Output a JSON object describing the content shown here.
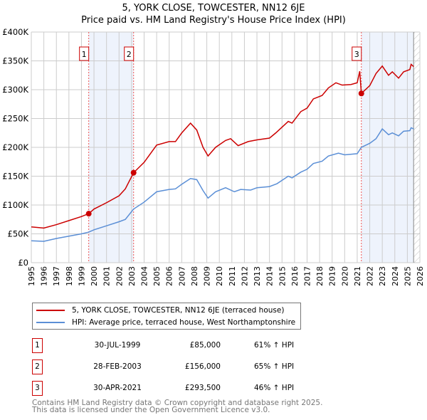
{
  "chart_data": {
    "type": "line",
    "title": "5, YORK CLOSE, TOWCESTER, NN12 6JE",
    "subtitle": "Price paid vs. HM Land Registry's House Price Index (HPI)",
    "xlim": [
      1995,
      2026
    ],
    "ylim": [
      0,
      400000
    ],
    "x_ticks": [
      "1995",
      "1996",
      "1997",
      "1998",
      "1999",
      "2000",
      "2001",
      "2002",
      "2003",
      "2004",
      "2005",
      "2006",
      "2007",
      "2008",
      "2009",
      "2010",
      "2011",
      "2012",
      "2013",
      "2014",
      "2015",
      "2016",
      "2017",
      "2018",
      "2019",
      "2020",
      "2021",
      "2022",
      "2023",
      "2024",
      "2025",
      "2026"
    ],
    "y_ticks": [
      {
        "v": 0,
        "l": "£0"
      },
      {
        "v": 50000,
        "l": "£50K"
      },
      {
        "v": 100000,
        "l": "£100K"
      },
      {
        "v": 150000,
        "l": "£150K"
      },
      {
        "v": 200000,
        "l": "£200K"
      },
      {
        "v": 250000,
        "l": "£250K"
      },
      {
        "v": 300000,
        "l": "£300K"
      },
      {
        "v": 350000,
        "l": "£350K"
      },
      {
        "v": 400000,
        "l": "£400K"
      }
    ],
    "grid": true,
    "shaded_ranges": [
      [
        1999.58,
        2003.16
      ],
      [
        2021.33,
        2026
      ]
    ],
    "hatched_from": 2025.5,
    "series": [
      {
        "name": "5, YORK CLOSE, TOWCESTER, NN12 6JE (terraced house)",
        "color": "#cc0000",
        "x": [
          1995,
          1996,
          1997,
          1998,
          1999,
          1999.58,
          2000,
          2001,
          2002,
          2002.5,
          2003.16,
          2004,
          2005,
          2006,
          2006.5,
          2007,
          2007.7,
          2008.2,
          2008.7,
          2009.1,
          2009.7,
          2010.5,
          2010.9,
          2011.5,
          2012.3,
          2013,
          2014,
          2014.5,
          2015.5,
          2015.8,
          2016.5,
          2017,
          2017.5,
          2018.2,
          2018.7,
          2019.3,
          2019.8,
          2020.5,
          2021,
          2021.2,
          2021.33,
          2022,
          2022.5,
          2023,
          2023.5,
          2023.8,
          2024.3,
          2024.7,
          2025.2,
          2025.3,
          2025.5
        ],
        "y": [
          62000,
          60000,
          66000,
          73000,
          80000,
          85000,
          93000,
          104000,
          116000,
          128000,
          156000,
          174000,
          204000,
          210000,
          210000,
          225000,
          242000,
          230000,
          200000,
          185000,
          200000,
          212000,
          215000,
          203000,
          210000,
          213000,
          216000,
          225000,
          245000,
          242000,
          262000,
          268000,
          284000,
          290000,
          303000,
          312000,
          308000,
          309000,
          312000,
          332000,
          293500,
          307000,
          328000,
          341000,
          325000,
          331000,
          320000,
          331000,
          335000,
          344000,
          340000
        ]
      },
      {
        "name": "HPI: Average price, terraced house, West Northamptonshire",
        "color": "#5b8fd6",
        "x": [
          1995,
          1996,
          1997,
          1998,
          1999,
          1999.58,
          2000,
          2001,
          2002,
          2002.5,
          2003.16,
          2004,
          2005,
          2006,
          2006.5,
          2007,
          2007.7,
          2008.2,
          2008.7,
          2009.1,
          2009.7,
          2010.5,
          2011.2,
          2011.7,
          2012.5,
          2013,
          2014,
          2014.6,
          2015.5,
          2015.8,
          2016.5,
          2017,
          2017.5,
          2018.2,
          2018.7,
          2019.5,
          2020,
          2021,
          2021.33,
          2022,
          2022.5,
          2023,
          2023.5,
          2023.8,
          2024.3,
          2024.7,
          2025.2,
          2025.3,
          2025.5
        ],
        "y": [
          38000,
          37000,
          42000,
          46000,
          50000,
          53000,
          57000,
          64000,
          71000,
          75000,
          93000,
          105000,
          123000,
          127000,
          128000,
          136000,
          146000,
          144000,
          125000,
          112000,
          123000,
          130000,
          123000,
          127000,
          126000,
          130000,
          132000,
          137000,
          150000,
          147000,
          157000,
          162000,
          172000,
          176000,
          185000,
          190000,
          187000,
          189000,
          200000,
          207000,
          215000,
          232000,
          222000,
          225000,
          220000,
          228000,
          229000,
          234000,
          232000
        ]
      }
    ],
    "sales": [
      {
        "label": "1",
        "date": "30-JUL-1999",
        "x": 1999.58,
        "price": "£85,000",
        "value": 85000,
        "hpi": "61% ↑ HPI"
      },
      {
        "label": "2",
        "date": "28-FEB-2003",
        "x": 2003.16,
        "price": "£156,000",
        "value": 156000,
        "hpi": "65% ↑ HPI"
      },
      {
        "label": "3",
        "date": "30-APR-2021",
        "x": 2021.33,
        "price": "£293,500",
        "value": 293500,
        "hpi": "46% ↑ HPI"
      }
    ]
  },
  "footer": {
    "line1": "Contains HM Land Registry data © Crown copyright and database right 2025.",
    "line2": "This data is licensed under the Open Government Licence v3.0."
  }
}
